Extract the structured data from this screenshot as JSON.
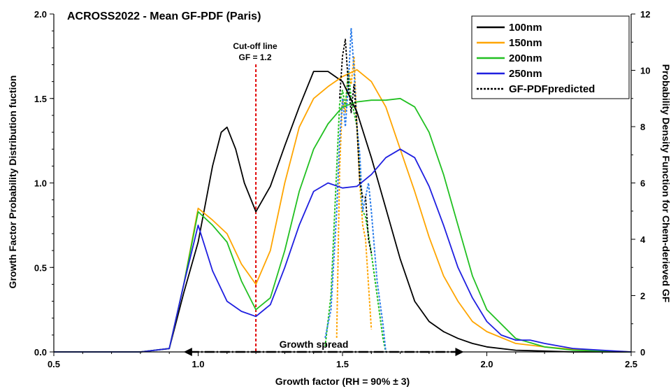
{
  "chart_data": {
    "type": "line",
    "title": "ACROSS2022 - Mean GF-PDF (Paris)",
    "xlabel": "Growth factor (RH = 90% ± 3)",
    "ylabel": "Growth Factor Probability Distribution fuction",
    "y2label": "Probability Density Function for Chem-derieved GF",
    "xlim": [
      0.5,
      2.5
    ],
    "ylim": [
      0,
      2.0
    ],
    "y2lim": [
      0,
      12
    ],
    "xticks": [
      "0.5",
      "1.0",
      "1.5",
      "2.0",
      "2.5"
    ],
    "yticks": [
      "0.0",
      "0.5",
      "1.0",
      "1.5",
      "2.0"
    ],
    "y2ticks": [
      "0",
      "2",
      "4",
      "6",
      "8",
      "10",
      "12"
    ],
    "legend_position": "top-right",
    "series": [
      {
        "name": "100nm",
        "color": "#000000",
        "axis": "left",
        "dash": "solid",
        "x": [
          0.5,
          0.8,
          0.9,
          0.95,
          1.0,
          1.05,
          1.08,
          1.1,
          1.13,
          1.16,
          1.2,
          1.25,
          1.3,
          1.35,
          1.4,
          1.45,
          1.5,
          1.55,
          1.6,
          1.65,
          1.7,
          1.75,
          1.8,
          1.85,
          1.9,
          1.95,
          2.0,
          2.1,
          2.2,
          2.3,
          2.5
        ],
        "y": [
          0.0,
          0.0,
          0.02,
          0.35,
          0.65,
          1.1,
          1.3,
          1.33,
          1.2,
          1.0,
          0.83,
          0.98,
          1.22,
          1.45,
          1.66,
          1.66,
          1.6,
          1.42,
          1.15,
          0.85,
          0.55,
          0.3,
          0.18,
          0.12,
          0.08,
          0.05,
          0.03,
          0.01,
          0.005,
          0.0,
          0.0
        ]
      },
      {
        "name": "150nm",
        "color": "#FFA500",
        "axis": "left",
        "dash": "solid",
        "x": [
          0.5,
          0.8,
          0.9,
          0.95,
          1.0,
          1.05,
          1.1,
          1.15,
          1.2,
          1.25,
          1.3,
          1.35,
          1.4,
          1.45,
          1.5,
          1.55,
          1.6,
          1.65,
          1.7,
          1.75,
          1.8,
          1.85,
          1.9,
          1.95,
          2.0,
          2.1,
          2.2,
          2.3,
          2.5
        ],
        "y": [
          0.0,
          0.0,
          0.02,
          0.4,
          0.85,
          0.78,
          0.7,
          0.52,
          0.4,
          0.6,
          1.0,
          1.33,
          1.5,
          1.57,
          1.63,
          1.67,
          1.6,
          1.45,
          1.2,
          0.95,
          0.68,
          0.45,
          0.3,
          0.18,
          0.12,
          0.05,
          0.03,
          0.015,
          0.0
        ]
      },
      {
        "name": "200nm",
        "color": "#22C022",
        "axis": "left",
        "dash": "solid",
        "x": [
          0.5,
          0.8,
          0.9,
          0.95,
          1.0,
          1.05,
          1.1,
          1.15,
          1.2,
          1.25,
          1.3,
          1.35,
          1.4,
          1.45,
          1.5,
          1.55,
          1.6,
          1.65,
          1.7,
          1.75,
          1.8,
          1.85,
          1.9,
          1.95,
          2.0,
          2.1,
          2.2,
          2.3,
          2.5
        ],
        "y": [
          0.0,
          0.0,
          0.02,
          0.4,
          0.83,
          0.75,
          0.65,
          0.42,
          0.25,
          0.32,
          0.6,
          0.95,
          1.2,
          1.35,
          1.45,
          1.48,
          1.49,
          1.49,
          1.5,
          1.45,
          1.3,
          1.05,
          0.75,
          0.45,
          0.25,
          0.08,
          0.03,
          0.01,
          0.0
        ]
      },
      {
        "name": "250nm",
        "color": "#1F1FE0",
        "axis": "left",
        "dash": "solid",
        "x": [
          0.5,
          0.8,
          0.9,
          0.95,
          1.0,
          1.05,
          1.1,
          1.15,
          1.2,
          1.25,
          1.3,
          1.35,
          1.4,
          1.45,
          1.5,
          1.55,
          1.6,
          1.65,
          1.7,
          1.75,
          1.8,
          1.85,
          1.9,
          1.95,
          2.0,
          2.05,
          2.1,
          2.15,
          2.2,
          2.3,
          2.4,
          2.5
        ],
        "y": [
          0.0,
          0.0,
          0.02,
          0.4,
          0.75,
          0.48,
          0.3,
          0.24,
          0.21,
          0.28,
          0.5,
          0.75,
          0.95,
          1.0,
          0.97,
          0.98,
          1.05,
          1.15,
          1.2,
          1.15,
          0.98,
          0.75,
          0.5,
          0.32,
          0.18,
          0.1,
          0.07,
          0.07,
          0.05,
          0.02,
          0.01,
          0.0
        ]
      },
      {
        "name": "GF-PDFpredicted",
        "color": "#000000",
        "axis": "right",
        "dash": "dashed",
        "x": [
          1.49,
          1.5,
          1.51,
          1.52,
          1.53,
          1.54,
          1.55,
          1.56,
          1.57,
          1.58,
          1.59,
          1.6
        ],
        "y": [
          9.0,
          10.5,
          11.1,
          9.5,
          8.5,
          9.5,
          8.0,
          6.0,
          5.5,
          5.5,
          4.0,
          3.5
        ]
      }
    ],
    "extra_dotted_series": [
      {
        "color": "#FFA500",
        "x": [
          1.48,
          1.49,
          1.5,
          1.51,
          1.52,
          1.53,
          1.54,
          1.55,
          1.56,
          1.57,
          1.58,
          1.6
        ],
        "y": [
          0.5,
          6.5,
          9.0,
          8.5,
          10.0,
          9.5,
          10.5,
          8.0,
          6.0,
          4.5,
          4.0,
          0.8
        ]
      },
      {
        "color": "#22C022",
        "x": [
          1.44,
          1.46,
          1.48,
          1.49,
          1.5,
          1.51,
          1.52,
          1.53,
          1.54,
          1.55,
          1.56,
          1.57,
          1.58,
          1.6,
          1.62,
          1.64,
          1.65
        ],
        "y": [
          0.2,
          2.0,
          6.5,
          8.8,
          9.3,
          8.7,
          10.0,
          9.0,
          8.5,
          8.0,
          6.5,
          5.0,
          4.8,
          3.5,
          2.0,
          0.5,
          0.0
        ]
      },
      {
        "color": "#2F7FEA",
        "x": [
          1.44,
          1.46,
          1.48,
          1.49,
          1.5,
          1.51,
          1.52,
          1.53,
          1.54,
          1.55,
          1.56,
          1.57,
          1.58,
          1.59,
          1.6,
          1.62,
          1.64,
          1.65
        ],
        "y": [
          0.5,
          1.5,
          5.0,
          7.5,
          9.0,
          8.0,
          9.5,
          11.5,
          10.0,
          8.0,
          7.0,
          5.0,
          5.5,
          6.0,
          5.0,
          2.5,
          1.0,
          0.0
        ]
      }
    ],
    "annotations": {
      "cutoff_line1": "Cut-off line",
      "cutoff_line2": "GF = 1.2",
      "cutoff_x": 1.2,
      "cutoff_color": "#E00000",
      "growth_spread": "Growth spread",
      "growth_spread_from": 0.95,
      "growth_spread_to": 1.92,
      "growth_spread_y": 0.0
    }
  }
}
